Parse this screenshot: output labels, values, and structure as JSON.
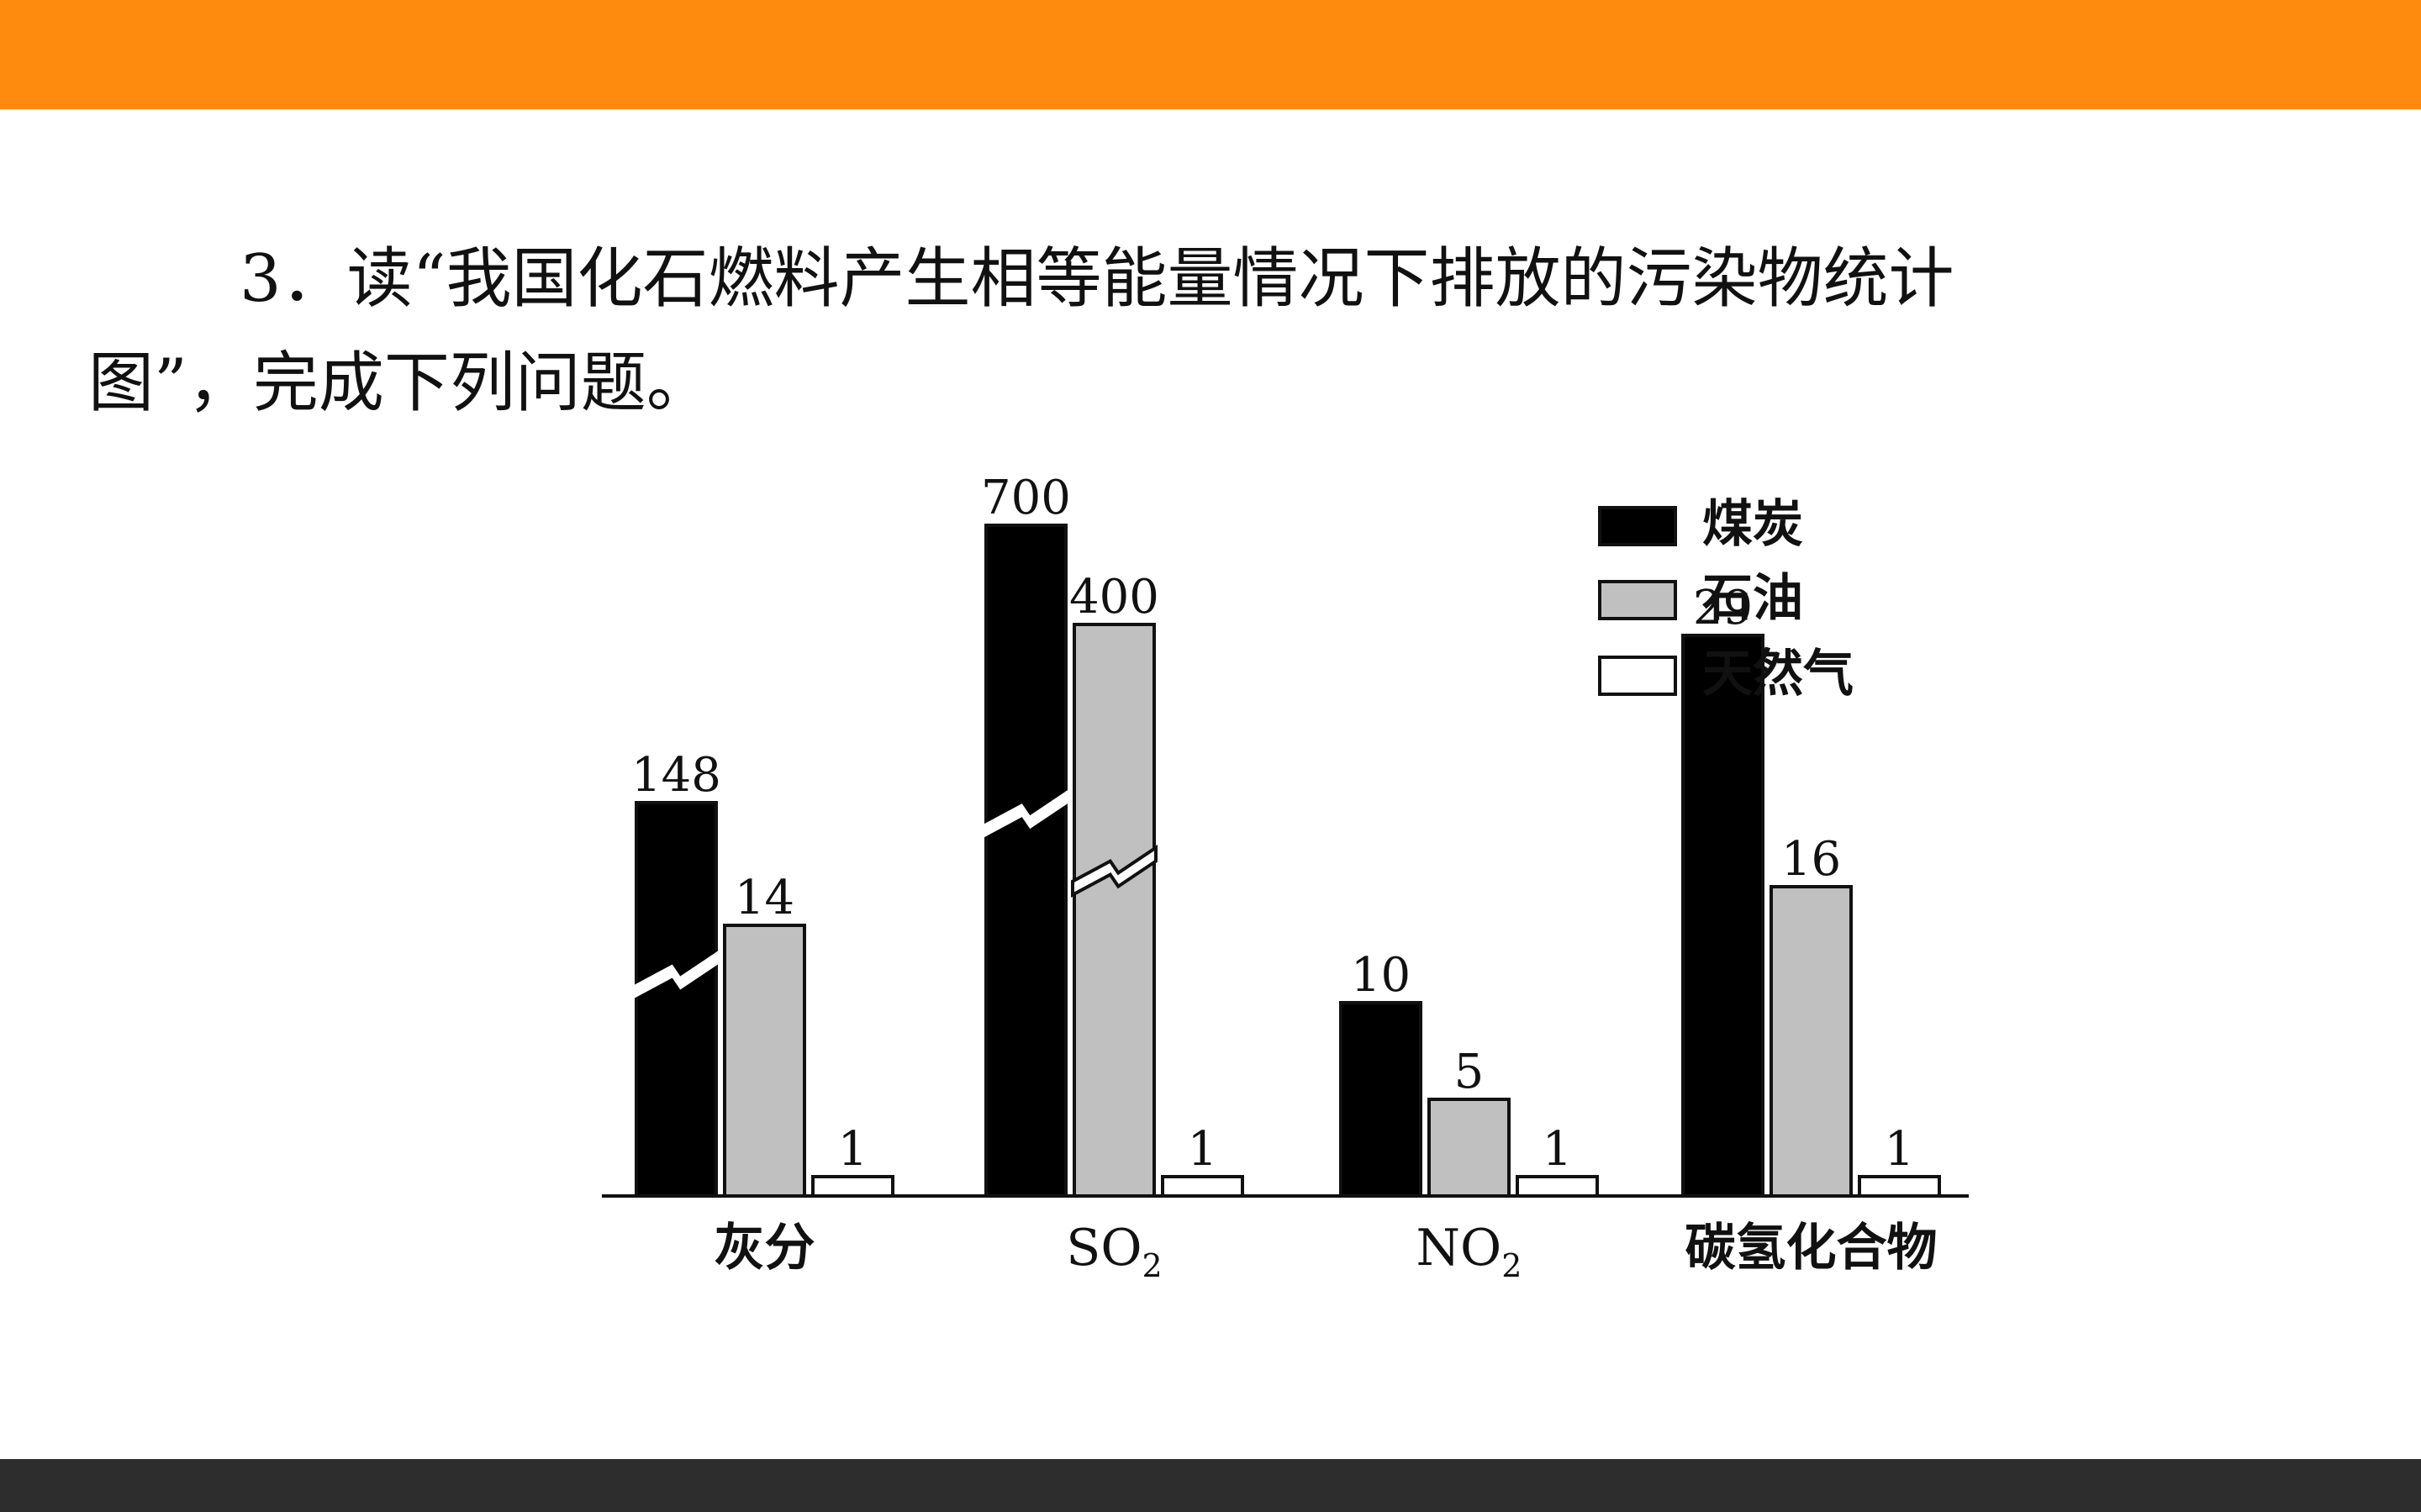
{
  "question": {
    "line1": "3．读“我国化石燃料产生相等能量情况下排放的污染物统计",
    "line2": "图”，完成下列问题。"
  },
  "colors": {
    "top_bar": "#fe8a0e",
    "bottom_bar": "#2d2d2d",
    "coal": "#000000",
    "oil": "#c0c0c0",
    "gas": "#ffffff"
  },
  "chart_data": {
    "type": "bar",
    "categories": [
      {
        "text": "灰分",
        "sub": ""
      },
      {
        "text": "SO",
        "sub": "2"
      },
      {
        "text": "NO",
        "sub": "2"
      },
      {
        "text": "碳氢化合物",
        "sub": ""
      }
    ],
    "series": [
      {
        "name": "煤炭",
        "values": [
          148,
          700,
          10,
          29
        ],
        "broken": [
          true,
          true,
          false,
          false
        ]
      },
      {
        "name": "石油",
        "values": [
          14,
          400,
          5,
          16
        ],
        "broken": [
          false,
          true,
          false,
          false
        ]
      },
      {
        "name": "天然气",
        "values": [
          1,
          1,
          1,
          1
        ],
        "broken": [
          false,
          false,
          false,
          false
        ]
      }
    ],
    "legend_position": "top-right",
    "axis_break": "broken bars for large values",
    "title": "",
    "xlabel": "",
    "ylabel": "",
    "grid": false
  }
}
